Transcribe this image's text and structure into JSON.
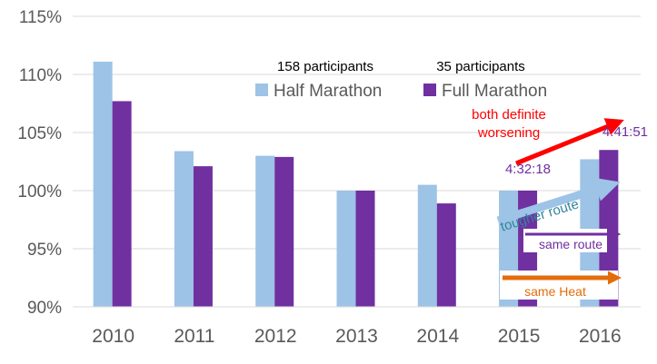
{
  "chart_data": {
    "type": "bar",
    "title": "",
    "xlabel": "",
    "ylabel": "",
    "ylim": [
      90,
      115
    ],
    "ytick_values": [
      90,
      95,
      100,
      105,
      110,
      115
    ],
    "ytick_labels": [
      "90%",
      "95%",
      "100%",
      "105%",
      "110%",
      "115%"
    ],
    "grid": true,
    "categories": [
      "2010",
      "2011",
      "2012",
      "2013",
      "2014",
      "2015",
      "2016"
    ],
    "series": [
      {
        "name": "Half Marathon",
        "note": "158 participants",
        "color": "#9DC3E6",
        "values": [
          111.1,
          103.4,
          103.0,
          100.0,
          100.5,
          100.0,
          102.7
        ]
      },
      {
        "name": "Full Marathon",
        "note": "35 participants",
        "color": "#7030A0",
        "values": [
          107.7,
          102.1,
          102.9,
          100.0,
          98.9,
          100.0,
          103.5
        ]
      }
    ],
    "annotations": {
      "worsening": {
        "text_line1": "both definite",
        "text_line2": "worsening",
        "color": "#FF0000"
      },
      "time_2015": {
        "text": "4:32:18",
        "color": "#7030A0"
      },
      "time_2016": {
        "text": "4:41:51",
        "color": "#7030A0"
      },
      "tougher_route": {
        "text": "tougher route",
        "color": "#31859C",
        "arrow_color": "#9DC3E6"
      },
      "same_route": {
        "text": "same route",
        "color": "#7030A0"
      },
      "same_heat": {
        "text": "same Heat",
        "color": "#E46C0A"
      }
    }
  }
}
